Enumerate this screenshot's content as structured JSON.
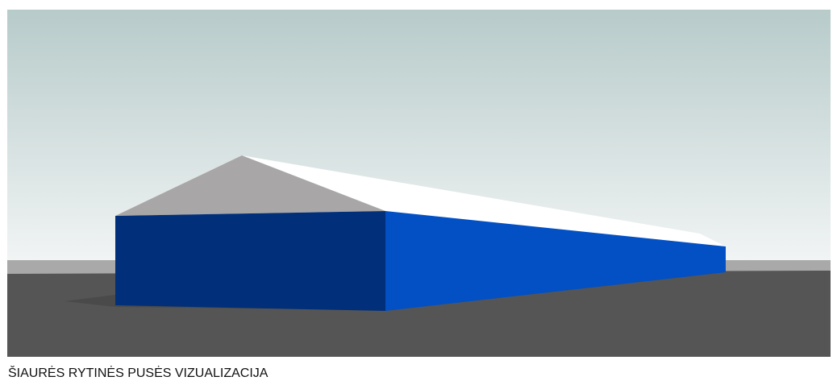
{
  "caption": "ŠIAURĖS RYTINĖS PUSĖS VIZUALIZACIJA"
}
